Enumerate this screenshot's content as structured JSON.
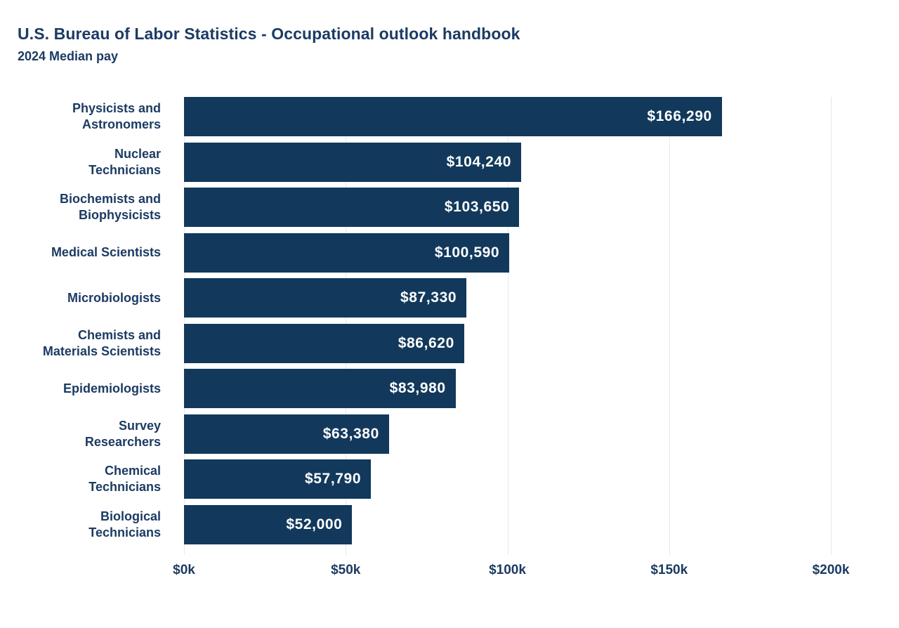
{
  "page": {
    "title": "U.S. Bureau of Labor Statistics - Occupational outlook handbook",
    "subtitle": "2024 Median pay"
  },
  "chart_data": {
    "type": "bar",
    "orientation": "horizontal",
    "title": "U.S. Bureau of Labor Statistics - Occupational outlook handbook",
    "subtitle": "2024 Median pay",
    "categories": [
      "Physicists and\nAstronomers",
      "Nuclear\nTechnicians",
      "Biochemists and\nBiophysicists",
      "Medical Scientists",
      "Microbiologists",
      "Chemists and\nMaterials Scientists",
      "Epidemiologists",
      "Survey\nResearchers",
      "Chemical\nTechnicians",
      "Biological\nTechnicians"
    ],
    "values": [
      166290,
      104240,
      103650,
      100590,
      87330,
      86620,
      83980,
      63380,
      57790,
      52000
    ],
    "value_labels": [
      "$166,290",
      "$104,240",
      "$103,650",
      "$100,590",
      "$87,330",
      "$86,620",
      "$83,980",
      "$63,380",
      "$57,790",
      "$52,000"
    ],
    "xlabel": "",
    "ylabel": "",
    "xlim": [
      0,
      200000
    ],
    "x_tick_labels": [
      "$0k",
      "$50k",
      "$100k",
      "$150k",
      "$200k"
    ],
    "x_tick_values": [
      0,
      50000,
      100000,
      150000,
      200000
    ],
    "grid": "vertical",
    "legend": "none",
    "colors": {
      "bar": "#12395c",
      "text": "#1c3b63",
      "value_label": "#ffffff",
      "gridline": "#e7e8ea",
      "background": "#ffffff"
    }
  }
}
